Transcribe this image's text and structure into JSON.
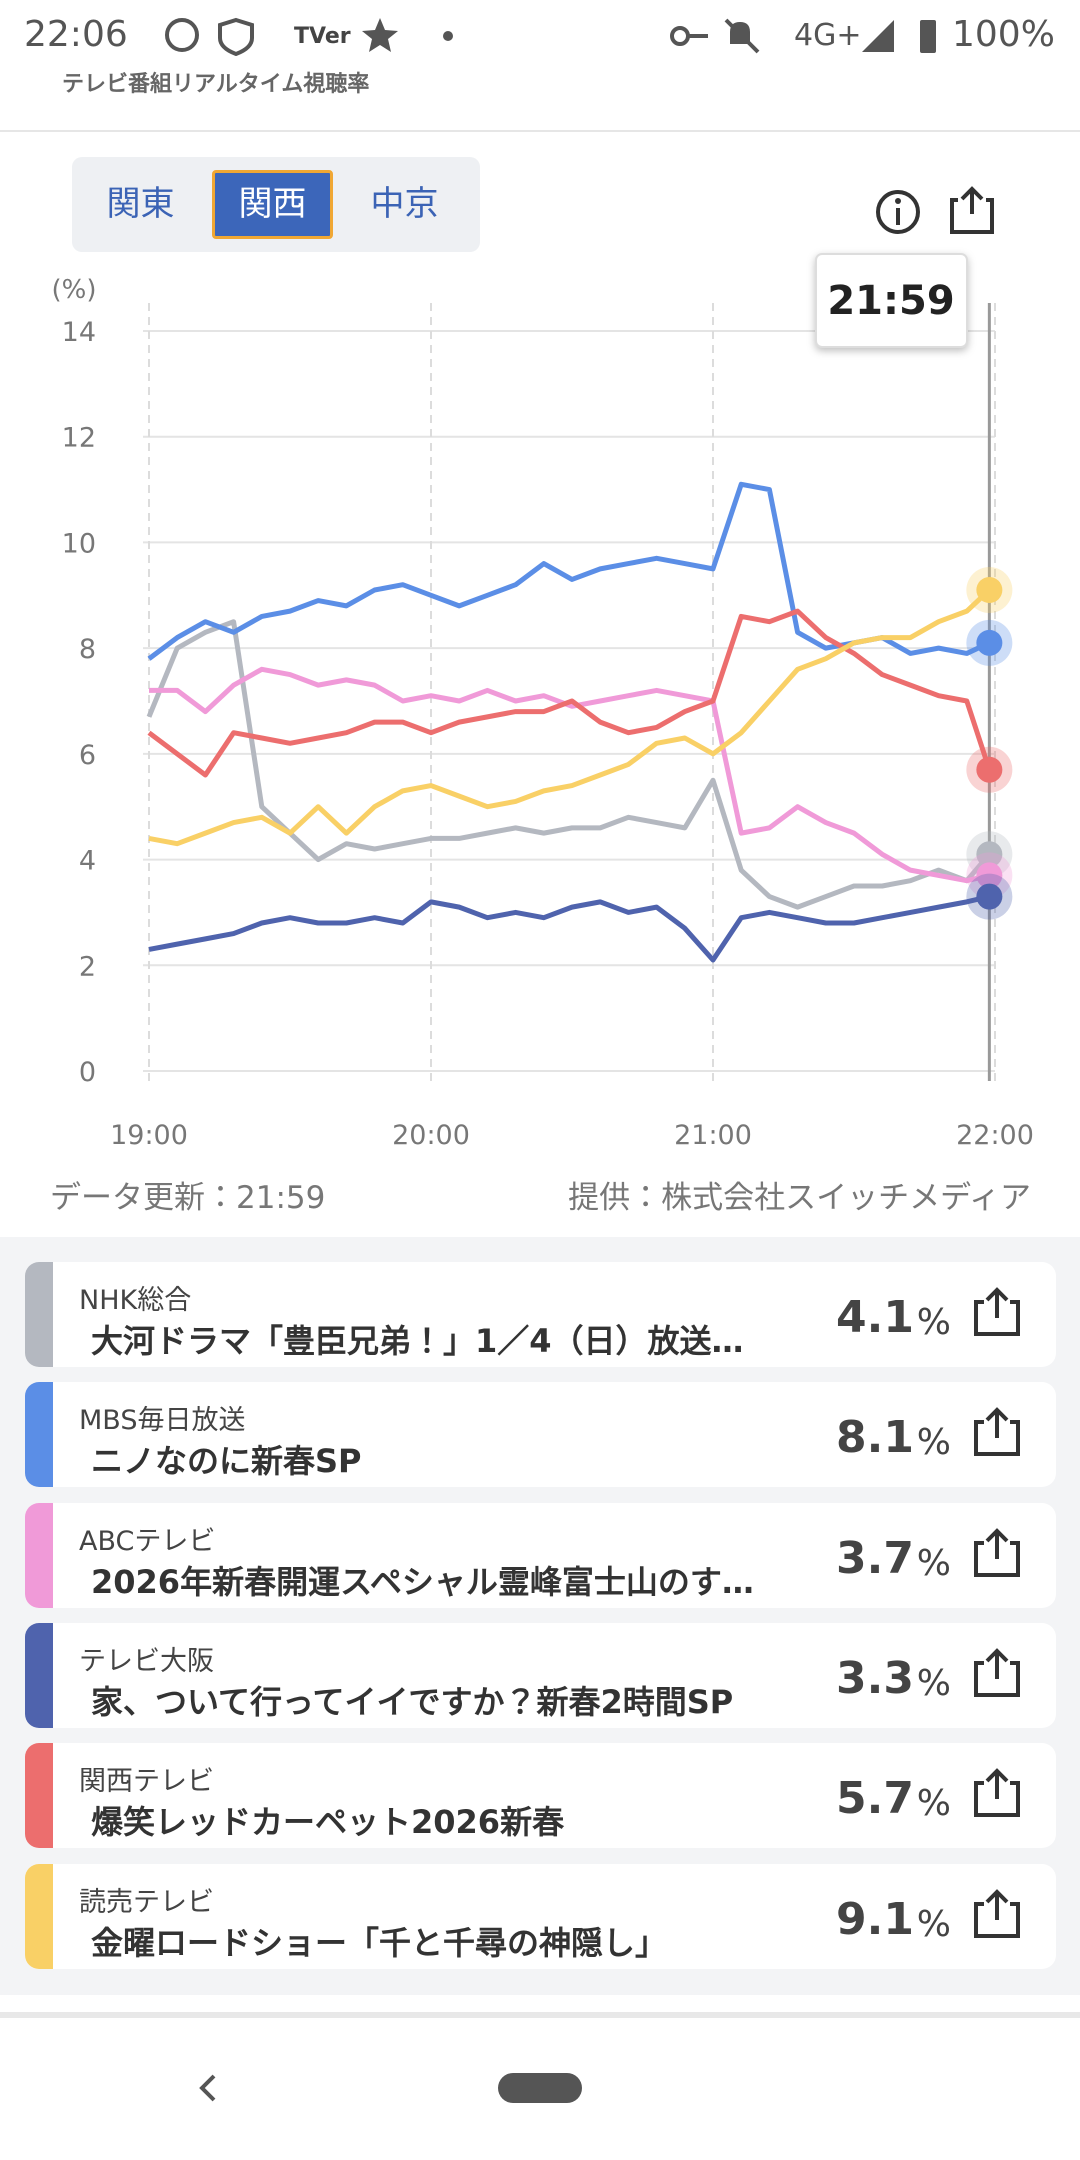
{
  "status_bar": {
    "time": "22:06",
    "notification": "TVer",
    "network": "4G+",
    "battery": "100%"
  },
  "header": {
    "title": "テレビ番組リアルタイム視聴率"
  },
  "tabs": [
    "関東",
    "関西",
    "中京"
  ],
  "selected_tab": 1,
  "chart_data": {
    "type": "line",
    "y_unit_label": "(%)",
    "tooltip": "21:59",
    "x": [
      19.0,
      19.1,
      19.2,
      19.3,
      19.4,
      19.5,
      19.6,
      19.7,
      19.8,
      19.9,
      20.0,
      20.1,
      20.2,
      20.3,
      20.4,
      20.5,
      20.6,
      20.7,
      20.8,
      20.9,
      21.0,
      21.1,
      21.2,
      21.3,
      21.4,
      21.5,
      21.6,
      21.7,
      21.8,
      21.9,
      21.98
    ],
    "xlim": [
      19,
      22
    ],
    "xticks": [
      {
        "value": 19,
        "label": "19:00"
      },
      {
        "value": 20,
        "label": "20:00"
      },
      {
        "value": 21,
        "label": "21:00"
      },
      {
        "value": 22,
        "label": "22:00"
      }
    ],
    "ylim": [
      0,
      14
    ],
    "yticks": [
      0,
      2,
      4,
      6,
      8,
      10,
      12,
      14
    ],
    "grid": true,
    "series": [
      {
        "name": "NHK総合",
        "color": "#b4b8c0",
        "values": [
          6.7,
          8.0,
          8.3,
          8.5,
          5.0,
          4.5,
          4.0,
          4.3,
          4.2,
          4.3,
          4.4,
          4.4,
          4.5,
          4.6,
          4.5,
          4.6,
          4.6,
          4.8,
          4.7,
          4.6,
          5.5,
          3.8,
          3.3,
          3.1,
          3.3,
          3.5,
          3.5,
          3.6,
          3.8,
          3.6,
          4.1
        ]
      },
      {
        "name": "MBS毎日放送",
        "color": "#5b8ee6",
        "values": [
          7.8,
          8.2,
          8.5,
          8.3,
          8.6,
          8.7,
          8.9,
          8.8,
          9.1,
          9.2,
          9.0,
          8.8,
          9.0,
          9.2,
          9.6,
          9.3,
          9.5,
          9.6,
          9.7,
          9.6,
          9.5,
          11.1,
          11.0,
          8.3,
          8.0,
          8.1,
          8.2,
          7.9,
          8.0,
          7.9,
          8.1
        ]
      },
      {
        "name": "ABCテレビ",
        "color": "#f09ad8",
        "values": [
          7.2,
          7.2,
          6.8,
          7.3,
          7.6,
          7.5,
          7.3,
          7.4,
          7.3,
          7.0,
          7.1,
          7.0,
          7.2,
          7.0,
          7.1,
          6.9,
          7.0,
          7.1,
          7.2,
          7.1,
          7.0,
          4.5,
          4.6,
          5.0,
          4.7,
          4.5,
          4.1,
          3.8,
          3.7,
          3.6,
          3.7
        ]
      },
      {
        "name": "テレビ大阪",
        "color": "#4f63ad",
        "values": [
          2.3,
          2.4,
          2.5,
          2.6,
          2.8,
          2.9,
          2.8,
          2.8,
          2.9,
          2.8,
          3.2,
          3.1,
          2.9,
          3.0,
          2.9,
          3.1,
          3.2,
          3.0,
          3.1,
          2.7,
          2.1,
          2.9,
          3.0,
          2.9,
          2.8,
          2.8,
          2.9,
          3.0,
          3.1,
          3.2,
          3.3
        ]
      },
      {
        "name": "関西テレビ",
        "color": "#ec6e6e",
        "values": [
          6.4,
          6.0,
          5.6,
          6.4,
          6.3,
          6.2,
          6.3,
          6.4,
          6.6,
          6.6,
          6.4,
          6.6,
          6.7,
          6.8,
          6.8,
          7.0,
          6.6,
          6.4,
          6.5,
          6.8,
          7.0,
          8.6,
          8.5,
          8.7,
          8.2,
          7.9,
          7.5,
          7.3,
          7.1,
          7.0,
          5.7
        ]
      },
      {
        "name": "読売テレビ",
        "color": "#f9d066",
        "values": [
          4.4,
          4.3,
          4.5,
          4.7,
          4.8,
          4.5,
          5.0,
          4.5,
          5.0,
          5.3,
          5.4,
          5.2,
          5.0,
          5.1,
          5.3,
          5.4,
          5.6,
          5.8,
          6.2,
          6.3,
          6.0,
          6.4,
          7.0,
          7.6,
          7.8,
          8.1,
          8.2,
          8.2,
          8.5,
          8.7,
          9.1
        ]
      }
    ]
  },
  "footer": {
    "updated": "データ更新：21:59",
    "source": "提供：株式会社スイッチメディア"
  },
  "programs": [
    "大河ドラマ「豊臣兄弟！」1／4（日）放送…",
    "ニノなのに新春SP",
    "2026年新春開運スペシャル霊峰富士山のす…",
    "家、ついて行ってイイですか？新春2時間SP",
    "爆笑レッドカーペット2026新春",
    "金曜ロードショー「千と千尋の神隠し」"
  ],
  "rating_unit": "%"
}
